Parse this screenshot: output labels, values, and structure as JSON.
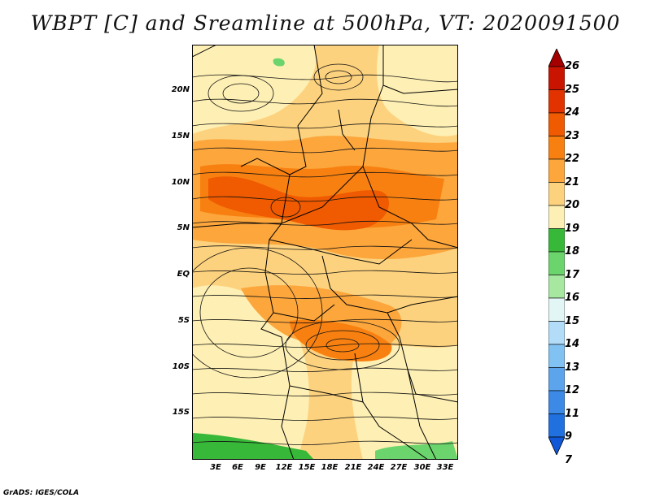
{
  "title": "WBPT [C] and Sreamline at 500hPa, VT: 2020091500",
  "map": {
    "variable": "WBPT [C]",
    "overlay": "Streamline",
    "level": "500hPa",
    "valid_time": "2020091500",
    "lat_labels": [
      "20N",
      "15N",
      "10N",
      "5N",
      "EQ",
      "5S",
      "10S",
      "15S"
    ],
    "lon_labels": [
      "3E",
      "6E",
      "9E",
      "12E",
      "15E",
      "18E",
      "21E",
      "24E",
      "27E",
      "30E",
      "33E"
    ]
  },
  "colorbar": {
    "levels": [
      "26",
      "25",
      "24",
      "23",
      "22",
      "21",
      "20",
      "19",
      "18",
      "17",
      "16",
      "15",
      "14",
      "13",
      "12",
      "11",
      "9",
      "7"
    ],
    "colors": [
      "#a50000",
      "#c81400",
      "#e13200",
      "#f05a00",
      "#f88010",
      "#fca63c",
      "#fdd27e",
      "#fef0b4",
      "#38b838",
      "#6cd46c",
      "#a6e8a0",
      "#e2f6f6",
      "#b2dcf8",
      "#82c2f2",
      "#5ca4ec",
      "#3c8ae6",
      "#2070e0",
      "#1058d8"
    ]
  },
  "credit": "GrADS: IGES/COLA"
}
